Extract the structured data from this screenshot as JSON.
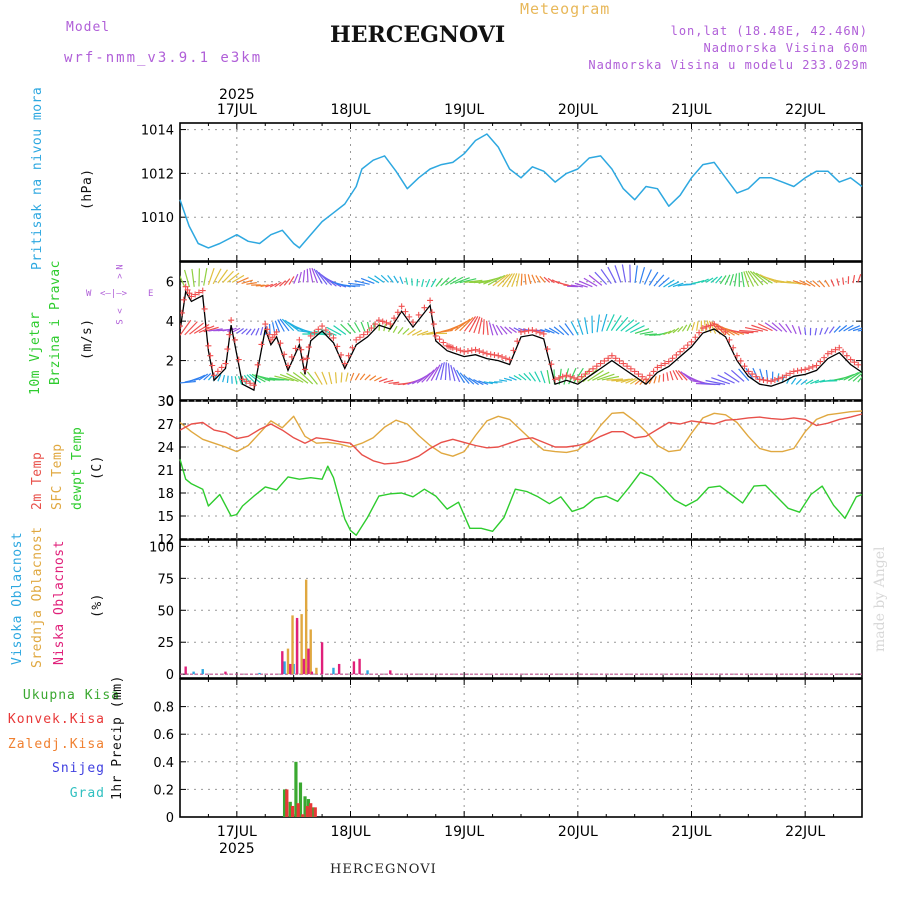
{
  "header": {
    "model_label": "Model",
    "model_name": "wrf-nmm_v3.9.1 e3km",
    "title": "HERCEGNOVI",
    "meteogram": "Meteogram",
    "lonlat": "lon,lat (18.48E, 42.46N)",
    "altitude": "Nadmorska Visina 60m",
    "model_altitude": "Nadmorska Visina u modelu 233.029m",
    "footer_title": "HERCEGNOVI",
    "credit": "made by Angel"
  },
  "colors": {
    "pressure": "#2ea8e0",
    "temp2m": "#e8504a",
    "sfc": "#e0a840",
    "dewpt": "#2ecc2e",
    "high": "#2ea8e0",
    "mid": "#e0a840",
    "low": "#e0207a",
    "total": "#3aa830",
    "conv": "#e83838",
    "frozen": "#f08030",
    "snow": "#4040e0",
    "grad": "#30c0c0",
    "wind_axis": "#b05fd8"
  },
  "chart_data": [
    {
      "id": "pressure",
      "type": "line",
      "title": "Pritisak na nivou mora",
      "unit_label": "(hPa)",
      "ylim": [
        1008,
        1014.3
      ],
      "yticks": [
        1010,
        1012,
        1014
      ],
      "x_day_start": 16.5,
      "x_day_end": 22.5,
      "x_labels": [
        "17JUL",
        "18JUL",
        "19JUL",
        "20JUL",
        "21JUL",
        "22JUL"
      ],
      "year_label": "2025",
      "series": [
        {
          "name": "MSLP",
          "x": [
            16.5,
            16.58,
            16.66,
            16.75,
            16.85,
            17.0,
            17.1,
            17.2,
            17.3,
            17.4,
            17.5,
            17.55,
            17.65,
            17.75,
            17.85,
            17.95,
            18.05,
            18.1,
            18.2,
            18.3,
            18.4,
            18.5,
            18.6,
            18.7,
            18.8,
            18.9,
            19.0,
            19.1,
            19.2,
            19.3,
            19.4,
            19.5,
            19.6,
            19.7,
            19.8,
            19.9,
            20.0,
            20.1,
            20.2,
            20.3,
            20.4,
            20.5,
            20.6,
            20.7,
            20.8,
            20.9,
            21.0,
            21.1,
            21.2,
            21.3,
            21.4,
            21.5,
            21.6,
            21.7,
            21.8,
            21.9,
            22.0,
            22.1,
            22.2,
            22.3,
            22.4,
            22.5
          ],
          "values": [
            1010.8,
            1009.6,
            1008.8,
            1008.6,
            1008.8,
            1009.2,
            1008.9,
            1008.8,
            1009.2,
            1009.4,
            1008.8,
            1008.6,
            1009.2,
            1009.8,
            1010.2,
            1010.6,
            1011.4,
            1012.2,
            1012.6,
            1012.8,
            1012.1,
            1011.3,
            1011.8,
            1012.2,
            1012.4,
            1012.5,
            1012.9,
            1013.5,
            1013.8,
            1013.2,
            1012.2,
            1011.8,
            1012.3,
            1012.1,
            1011.6,
            1012.0,
            1012.2,
            1012.7,
            1012.8,
            1012.2,
            1011.3,
            1010.8,
            1011.4,
            1011.3,
            1010.5,
            1011.0,
            1011.8,
            1012.4,
            1012.5,
            1011.8,
            1011.1,
            1011.3,
            1011.8,
            1011.8,
            1011.6,
            1011.4,
            1011.8,
            1012.1,
            1012.1,
            1011.6,
            1011.8,
            1011.4
          ]
        }
      ]
    },
    {
      "id": "wind",
      "type": "line",
      "title": "10m Vjetar",
      "title2": "Brzina i Pravac",
      "unit_label": "(m/s)",
      "compass": {
        "n": "N",
        "w": "W",
        "e": "E",
        "s": "S"
      },
      "ylim": [
        0,
        7
      ],
      "yticks": [
        0,
        2,
        4,
        6
      ],
      "x_day_start": 16.5,
      "x_day_end": 22.5,
      "series": [
        {
          "name": "Speed",
          "x": [
            16.5,
            16.55,
            16.6,
            16.7,
            16.75,
            16.8,
            16.9,
            16.95,
            17.05,
            17.15,
            17.25,
            17.3,
            17.35,
            17.45,
            17.55,
            17.6,
            17.65,
            17.75,
            17.85,
            17.95,
            18.05,
            18.15,
            18.25,
            18.35,
            18.45,
            18.55,
            18.7,
            18.75,
            18.85,
            18.9,
            19.0,
            19.1,
            19.2,
            19.3,
            19.4,
            19.5,
            19.6,
            19.7,
            19.8,
            19.9,
            20.0,
            20.1,
            20.2,
            20.3,
            20.4,
            20.5,
            20.6,
            20.7,
            20.8,
            20.9,
            21.0,
            21.1,
            21.2,
            21.3,
            21.4,
            21.5,
            21.6,
            21.7,
            21.8,
            21.9,
            22.0,
            22.1,
            22.2,
            22.3,
            22.4,
            22.5
          ],
          "values": [
            3.5,
            5.5,
            5.0,
            5.3,
            2.5,
            1.0,
            1.6,
            3.8,
            0.8,
            0.5,
            3.6,
            2.8,
            3.2,
            1.5,
            2.8,
            1.3,
            3.0,
            3.5,
            2.9,
            1.6,
            2.8,
            3.2,
            3.8,
            3.6,
            4.5,
            3.7,
            4.8,
            3.0,
            2.5,
            2.4,
            2.2,
            2.3,
            2.1,
            2.0,
            1.8,
            3.2,
            3.3,
            3.1,
            0.8,
            1.0,
            0.8,
            1.2,
            1.6,
            2.0,
            1.6,
            1.2,
            0.8,
            1.4,
            1.7,
            2.2,
            2.7,
            3.4,
            3.6,
            3.2,
            2.0,
            1.2,
            0.8,
            0.7,
            0.9,
            1.2,
            1.3,
            1.5,
            2.1,
            2.4,
            1.8,
            1.4
          ]
        }
      ]
    },
    {
      "id": "temperature",
      "type": "line",
      "title": "2m Temp",
      "title2": "SFC Temp",
      "title3": "dewpt Temp",
      "unit_label": "(C)",
      "ylim": [
        12,
        30
      ],
      "yticks": [
        12,
        15,
        18,
        21,
        24,
        27,
        30
      ],
      "x_day_start": 16.5,
      "x_day_end": 22.5,
      "series": [
        {
          "name": "2m Temp",
          "x": [
            16.5,
            16.6,
            16.7,
            16.8,
            16.9,
            17.0,
            17.1,
            17.2,
            17.3,
            17.4,
            17.5,
            17.6,
            17.7,
            17.8,
            17.9,
            18.0,
            18.1,
            18.2,
            18.3,
            18.4,
            18.5,
            18.6,
            18.7,
            18.8,
            18.9,
            19.0,
            19.1,
            19.2,
            19.3,
            19.4,
            19.5,
            19.6,
            19.7,
            19.8,
            19.9,
            20.0,
            20.1,
            20.2,
            20.3,
            20.4,
            20.5,
            20.6,
            20.7,
            20.8,
            20.9,
            21.0,
            21.1,
            21.2,
            21.3,
            21.4,
            21.5,
            21.6,
            21.7,
            21.8,
            21.9,
            22.0,
            22.1,
            22.2,
            22.3,
            22.4,
            22.5
          ],
          "values": [
            26.2,
            27.0,
            27.2,
            26.2,
            25.9,
            25.1,
            25.4,
            26.3,
            27.0,
            26.2,
            25.2,
            24.5,
            25.2,
            25.0,
            24.7,
            24.5,
            23.0,
            22.2,
            21.8,
            21.9,
            22.2,
            22.8,
            23.8,
            24.6,
            25.0,
            24.6,
            24.2,
            23.9,
            24.0,
            24.5,
            25.0,
            25.2,
            24.6,
            24.0,
            24.0,
            24.2,
            24.6,
            25.4,
            26.0,
            26.0,
            25.2,
            25.4,
            26.3,
            27.2,
            27.0,
            27.4,
            27.2,
            27.0,
            27.5,
            27.6,
            27.8,
            27.9,
            27.7,
            27.6,
            27.8,
            27.6,
            26.8,
            27.1,
            27.6,
            27.9,
            28.3
          ]
        },
        {
          "name": "SFC Temp",
          "x": [
            16.5,
            16.6,
            16.7,
            16.8,
            16.9,
            17.0,
            17.1,
            17.2,
            17.3,
            17.4,
            17.5,
            17.6,
            17.7,
            17.8,
            17.9,
            18.0,
            18.1,
            18.2,
            18.3,
            18.4,
            18.5,
            18.6,
            18.7,
            18.8,
            18.9,
            19.0,
            19.1,
            19.2,
            19.3,
            19.4,
            19.5,
            19.6,
            19.7,
            19.8,
            19.9,
            20.0,
            20.1,
            20.2,
            20.3,
            20.4,
            20.5,
            20.6,
            20.7,
            20.8,
            20.9,
            21.0,
            21.1,
            21.2,
            21.3,
            21.4,
            21.5,
            21.6,
            21.7,
            21.8,
            21.9,
            22.0,
            22.1,
            22.2,
            22.3,
            22.4,
            22.5
          ],
          "values": [
            27.2,
            26.0,
            25.0,
            24.5,
            24.0,
            23.4,
            24.2,
            25.8,
            27.4,
            26.5,
            28.0,
            25.4,
            24.5,
            24.6,
            24.4,
            24.0,
            24.5,
            25.2,
            26.6,
            27.5,
            27.0,
            25.5,
            24.2,
            23.2,
            22.8,
            23.4,
            25.5,
            27.4,
            28.0,
            27.6,
            26.2,
            24.8,
            23.6,
            23.4,
            23.3,
            23.6,
            24.8,
            26.8,
            28.4,
            28.5,
            27.4,
            26.0,
            24.2,
            23.4,
            23.6,
            25.8,
            27.8,
            28.4,
            28.2,
            27.2,
            25.4,
            23.8,
            23.4,
            23.4,
            23.8,
            26.0,
            27.6,
            28.2,
            28.4,
            28.6,
            28.7
          ]
        },
        {
          "name": "dewpt Temp",
          "x": [
            16.5,
            16.55,
            16.6,
            16.7,
            16.75,
            16.85,
            16.95,
            17.0,
            17.05,
            17.15,
            17.25,
            17.35,
            17.45,
            17.55,
            17.65,
            17.75,
            17.8,
            17.85,
            17.95,
            18.0,
            18.05,
            18.15,
            18.25,
            18.35,
            18.45,
            18.55,
            18.65,
            18.75,
            18.85,
            18.95,
            19.05,
            19.15,
            19.25,
            19.35,
            19.45,
            19.55,
            19.65,
            19.75,
            19.85,
            19.95,
            20.05,
            20.15,
            20.25,
            20.35,
            20.45,
            20.55,
            20.65,
            20.75,
            20.85,
            20.95,
            21.05,
            21.15,
            21.25,
            21.35,
            21.45,
            21.55,
            21.65,
            21.75,
            21.85,
            21.95,
            22.05,
            22.15,
            22.25,
            22.35,
            22.45,
            22.5
          ],
          "values": [
            22.4,
            19.8,
            19.2,
            18.5,
            16.3,
            17.8,
            15.0,
            15.2,
            16.3,
            17.6,
            18.8,
            18.4,
            20.1,
            19.8,
            20.0,
            19.8,
            21.5,
            20.0,
            14.6,
            13.1,
            12.5,
            14.8,
            17.6,
            17.9,
            18.0,
            17.5,
            18.5,
            17.6,
            15.9,
            16.8,
            13.4,
            13.4,
            13.0,
            14.8,
            18.5,
            18.2,
            17.5,
            16.6,
            17.5,
            15.6,
            16.1,
            17.3,
            17.6,
            16.9,
            18.7,
            20.7,
            20.1,
            18.7,
            17.1,
            16.3,
            17.1,
            18.7,
            18.9,
            17.8,
            16.7,
            18.9,
            19.0,
            17.5,
            16.0,
            15.5,
            17.8,
            18.9,
            16.4,
            14.7,
            17.5,
            17.8
          ]
        }
      ]
    },
    {
      "id": "cloud",
      "type": "bar",
      "title": "Visoka Oblacnost",
      "title2": "Srednja Oblacnost",
      "title3": "Niska Oblacnost",
      "unit_label": "(%)",
      "ylim": [
        -3,
        105
      ],
      "yticks": [
        0,
        25,
        50,
        75,
        100
      ],
      "x_day_start": 16.5,
      "x_day_end": 22.5,
      "series": [
        {
          "name": "Visoka",
          "x": [
            16.62,
            16.7,
            17.2,
            17.42,
            17.5,
            17.62,
            17.85,
            18.15
          ],
          "values": [
            2,
            4,
            1,
            10,
            8,
            5,
            5,
            3
          ]
        },
        {
          "name": "Srednja",
          "x": [
            17.45,
            17.49,
            17.53,
            17.57,
            17.61,
            17.65,
            17.7
          ],
          "values": [
            20,
            46,
            42,
            47,
            74,
            35,
            5
          ]
        },
        {
          "name": "Niska",
          "x": [
            16.55,
            16.9,
            17.4,
            17.47,
            17.53,
            17.59,
            17.63,
            17.66,
            17.75,
            17.9,
            18.03,
            18.08,
            18.35
          ],
          "values": [
            6,
            2,
            18,
            8,
            44,
            12,
            20,
            2,
            25,
            8,
            10,
            12,
            3
          ]
        }
      ]
    },
    {
      "id": "precip",
      "type": "bar",
      "title": "1hr Precip (mm)",
      "ylim": [
        0,
        1.0
      ],
      "yticks": [
        0,
        0.2,
        0.4,
        0.6,
        0.8
      ],
      "legend": [
        "Ukupna Kisa",
        "Konvek.Kisa",
        "Zaledj.Kisa",
        "Snijeg",
        "Grad"
      ],
      "x_day_start": 16.5,
      "x_day_end": 22.5,
      "series": [
        {
          "name": "Ukupna Kisa",
          "x": [
            17.42,
            17.47,
            17.52,
            17.56,
            17.6,
            17.63,
            17.67
          ],
          "values": [
            0.2,
            0.11,
            0.4,
            0.25,
            0.15,
            0.13,
            0.07
          ]
        },
        {
          "name": "Konvek.Kisa",
          "x": [
            17.44,
            17.49,
            17.54,
            17.58,
            17.62,
            17.65,
            17.69
          ],
          "values": [
            0.2,
            0.08,
            0.1,
            0.02,
            0.08,
            0.1,
            0.07
          ]
        }
      ]
    }
  ]
}
